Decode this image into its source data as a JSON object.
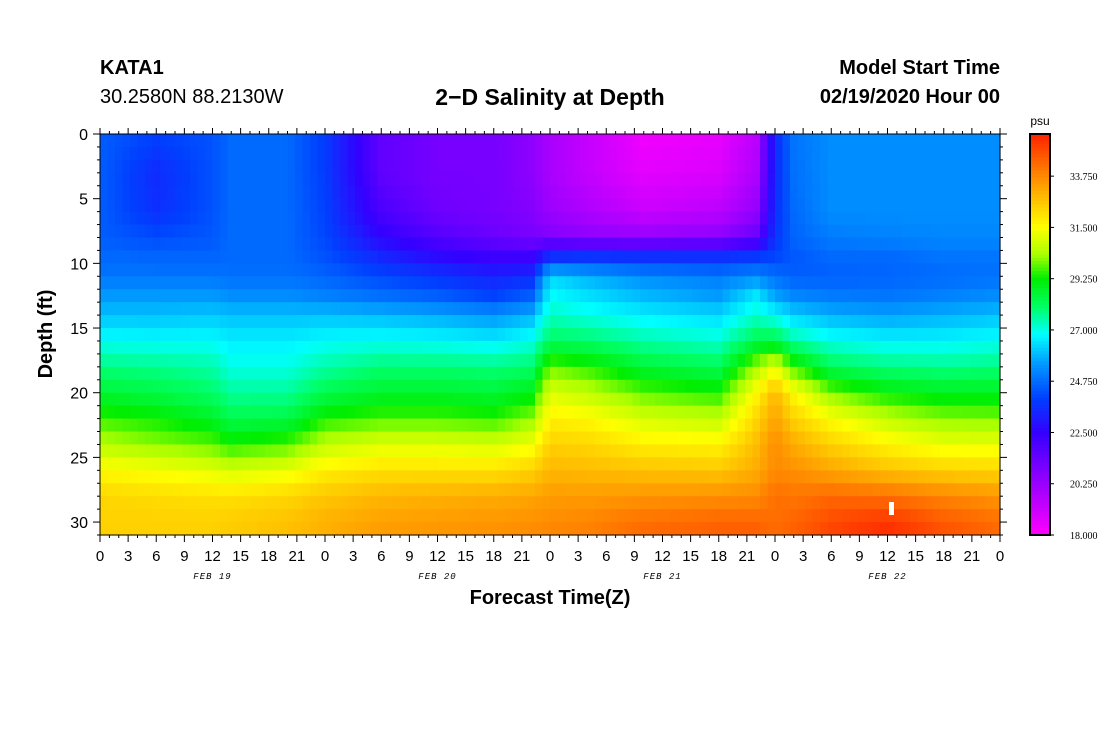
{
  "header": {
    "station": "KATA1",
    "coords": "30.2580N 88.2130W",
    "title": "2−D Salinity at Depth",
    "start_label": "Model Start Time",
    "start_value": "02/19/2020 Hour 00"
  },
  "chart_data": {
    "type": "heatmap",
    "title": "2−D Salinity at Depth",
    "xlabel": "Forecast Time(Z)",
    "ylabel": "Depth (ft)",
    "x_hours": [
      0,
      96
    ],
    "ylim": [
      0,
      31
    ],
    "y_ticks": [
      0,
      5,
      10,
      15,
      20,
      25,
      30
    ],
    "x_tick_labels": [
      "0",
      "3",
      "6",
      "9",
      "12",
      "15",
      "18",
      "21",
      "0",
      "3",
      "6",
      "9",
      "12",
      "15",
      "18",
      "21",
      "0",
      "3",
      "6",
      "9",
      "12",
      "15",
      "18",
      "21",
      "0",
      "3",
      "6",
      "9",
      "12",
      "15",
      "18",
      "21",
      "0"
    ],
    "date_labels": [
      {
        "text": "FEB 19",
        "hour": 12
      },
      {
        "text": "FEB 20",
        "hour": 36
      },
      {
        "text": "FEB 21",
        "hour": 60
      },
      {
        "text": "FEB 22",
        "hour": 84
      }
    ],
    "colorbar": {
      "unit": "psu",
      "min": 18.0,
      "max": 35.6,
      "ticks": [
        "18.000",
        "20.250",
        "22.500",
        "24.750",
        "27.000",
        "29.250",
        "31.500",
        "33.750"
      ],
      "stops": [
        {
          "v": 18.0,
          "color": "#ff00ff"
        },
        {
          "v": 20.25,
          "color": "#9900ff"
        },
        {
          "v": 22.5,
          "color": "#3300ff"
        },
        {
          "v": 24.0,
          "color": "#0040ff"
        },
        {
          "v": 25.5,
          "color": "#0099ff"
        },
        {
          "v": 26.8,
          "color": "#00ffff"
        },
        {
          "v": 28.0,
          "color": "#00ff66"
        },
        {
          "v": 29.25,
          "color": "#00ee00"
        },
        {
          "v": 30.3,
          "color": "#aaff00"
        },
        {
          "v": 31.5,
          "color": "#ffff00"
        },
        {
          "v": 32.5,
          "color": "#ffcc00"
        },
        {
          "v": 33.75,
          "color": "#ff8800"
        },
        {
          "v": 35.6,
          "color": "#ff2200"
        }
      ]
    },
    "depth_grid": [
      0,
      3,
      6,
      8,
      9.5,
      11,
      12.5,
      14,
      16,
      18,
      20,
      22,
      24,
      26,
      28,
      30,
      31
    ],
    "time_grid": [
      0,
      6,
      12,
      14,
      20,
      24,
      30,
      36,
      42,
      46,
      48,
      52,
      58,
      66,
      70,
      72,
      74,
      78,
      84,
      90,
      96
    ],
    "salinity": [
      [
        24.5,
        24.0,
        24.3,
        24.7,
        24.7,
        23.9,
        21.5,
        21.0,
        21.0,
        20.5,
        19.9,
        19.3,
        18.3,
        18.5,
        19.5,
        23.5,
        24.9,
        25.3,
        25.3,
        25.3,
        25.3
      ],
      [
        24.5,
        23.5,
        24.3,
        24.7,
        24.7,
        23.9,
        21.5,
        21.0,
        21.0,
        20.5,
        19.9,
        19.3,
        18.6,
        18.8,
        19.8,
        23.5,
        24.8,
        25.3,
        25.3,
        25.3,
        25.3
      ],
      [
        24.5,
        23.6,
        24.3,
        24.7,
        24.7,
        24.0,
        22.0,
        21.2,
        21.0,
        20.7,
        20.2,
        19.8,
        19.2,
        19.5,
        20.4,
        23.6,
        24.7,
        25.3,
        25.3,
        25.3,
        25.3
      ],
      [
        24.5,
        24.2,
        24.4,
        24.7,
        24.7,
        24.1,
        22.6,
        21.8,
        21.3,
        21.0,
        20.8,
        20.5,
        20.4,
        20.6,
        21.4,
        23.7,
        24.6,
        25.0,
        25.1,
        25.2,
        25.2
      ],
      [
        24.7,
        24.6,
        24.6,
        24.7,
        24.7,
        24.3,
        23.4,
        22.7,
        22.3,
        22.3,
        23.6,
        23.7,
        23.6,
        23.6,
        23.8,
        24.1,
        24.4,
        24.7,
        24.7,
        24.9,
        24.9
      ],
      [
        24.9,
        24.9,
        24.9,
        24.8,
        24.8,
        24.6,
        24.1,
        23.7,
        23.3,
        23.5,
        26.3,
        25.8,
        25.3,
        25.0,
        25.3,
        24.8,
        24.5,
        24.5,
        24.6,
        24.7,
        24.8
      ],
      [
        25.5,
        25.5,
        25.5,
        25.3,
        25.3,
        25.1,
        24.8,
        24.5,
        24.0,
        24.5,
        26.8,
        26.4,
        25.9,
        25.5,
        26.5,
        25.6,
        25.2,
        25.0,
        24.9,
        25.1,
        25.3
      ],
      [
        26.0,
        26.0,
        26.1,
        26.0,
        26.0,
        26.0,
        25.9,
        25.7,
        25.4,
        25.8,
        27.3,
        27.0,
        26.6,
        26.3,
        27.2,
        26.8,
        26.2,
        25.8,
        25.6,
        25.8,
        26.0
      ],
      [
        26.9,
        26.8,
        26.8,
        26.6,
        26.6,
        26.8,
        26.9,
        26.8,
        26.6,
        27.0,
        28.1,
        28.0,
        27.5,
        27.2,
        28.3,
        28.4,
        27.6,
        27.0,
        26.7,
        26.7,
        26.9
      ],
      [
        27.8,
        27.7,
        27.5,
        27.0,
        27.0,
        27.5,
        27.9,
        27.9,
        27.8,
        28.0,
        29.9,
        29.5,
        28.6,
        28.2,
        30.3,
        31.2,
        29.6,
        28.2,
        27.8,
        27.7,
        27.8
      ],
      [
        28.6,
        28.4,
        28.0,
        27.6,
        27.6,
        28.3,
        28.7,
        28.7,
        28.6,
        29.0,
        31.0,
        30.6,
        29.8,
        29.4,
        31.6,
        32.9,
        31.6,
        30.0,
        29.2,
        28.9,
        28.9
      ],
      [
        29.6,
        29.3,
        28.8,
        28.3,
        28.4,
        29.4,
        29.7,
        29.7,
        29.5,
        30.1,
        31.8,
        31.6,
        30.9,
        30.6,
        32.3,
        33.3,
        32.4,
        31.5,
        30.6,
        30.1,
        30.0
      ],
      [
        30.5,
        30.1,
        29.8,
        29.4,
        29.7,
        30.6,
        31.0,
        31.0,
        30.9,
        31.3,
        32.4,
        32.3,
        31.8,
        31.7,
        32.8,
        33.7,
        33.1,
        32.4,
        31.7,
        31.2,
        31.2
      ],
      [
        31.6,
        31.4,
        31.1,
        30.9,
        31.2,
        31.8,
        32.1,
        32.1,
        32.1,
        32.4,
        32.9,
        32.8,
        32.7,
        32.6,
        33.1,
        33.7,
        33.6,
        33.2,
        32.7,
        32.4,
        32.3
      ],
      [
        32.3,
        32.2,
        32.1,
        32.1,
        32.3,
        32.6,
        32.9,
        33.0,
        33.1,
        33.2,
        33.4,
        33.4,
        33.5,
        33.6,
        33.7,
        34.2,
        34.1,
        34.3,
        34.2,
        33.8,
        33.5
      ],
      [
        32.4,
        32.4,
        32.4,
        32.5,
        32.7,
        33.0,
        33.3,
        33.4,
        33.5,
        33.6,
        33.7,
        33.8,
        34.2,
        34.4,
        34.4,
        34.2,
        34.4,
        34.9,
        35.3,
        34.6,
        34.2
      ],
      [
        32.4,
        32.4,
        32.4,
        32.5,
        32.7,
        33.0,
        33.4,
        33.5,
        33.6,
        33.7,
        33.8,
        33.9,
        34.3,
        34.5,
        34.5,
        34.3,
        34.5,
        35.0,
        35.4,
        34.8,
        34.3
      ]
    ]
  }
}
